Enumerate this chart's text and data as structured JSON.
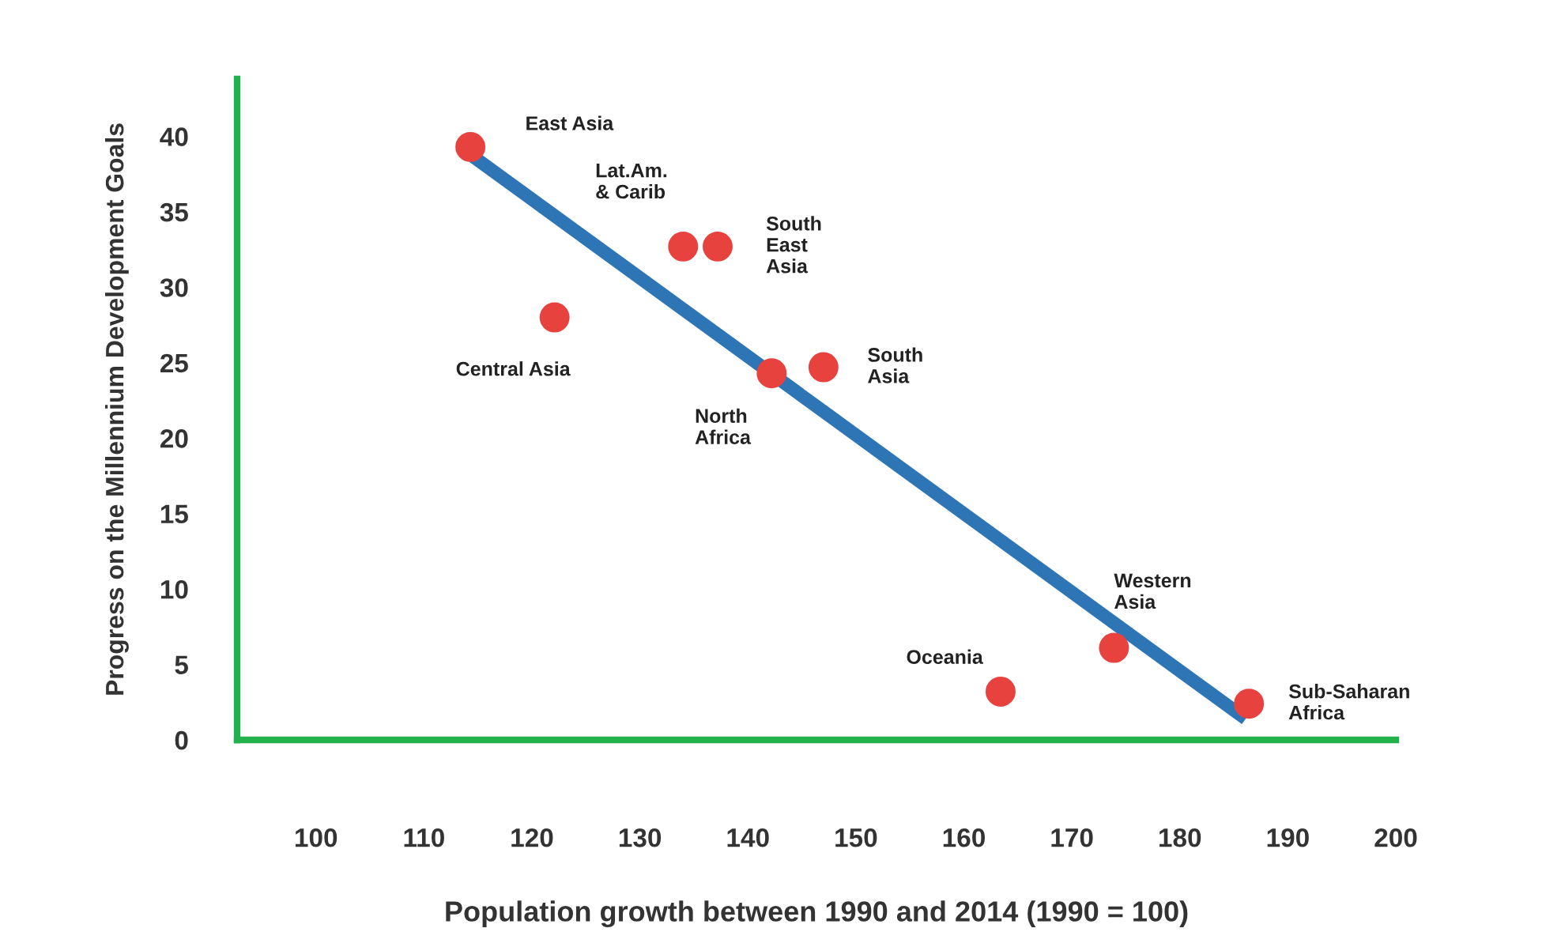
{
  "chart_data": {
    "type": "scatter",
    "xlabel": "Population growth between 1990 and 2014 (1990 = 100)",
    "ylabel": "Progress on the Millennium Development Goals",
    "series": [
      {
        "marker": "circle",
        "color": "#e8423f",
        "x": [
          114.3,
          134.0,
          137.2,
          122.1,
          142.2,
          147.0,
          163.4,
          173.9,
          186.4
        ],
        "values": [
          39.3,
          32.7,
          32.7,
          28.0,
          24.3,
          24.7,
          3.2,
          6.1,
          2.4
        ]
      },
      {
        "type": "line",
        "marker": "none",
        "color": "#2e75b6",
        "x": [
          114.3,
          186.1
        ],
        "values": [
          38.8,
          1.4
        ]
      }
    ],
    "annotations": [
      {
        "text": "East Asia",
        "x": 114.3,
        "y": 39.3
      },
      {
        "text": "Lat.Am.\n& Carib",
        "x": 134.0,
        "y": 32.7
      },
      {
        "text": "South\nEast\nAsia",
        "x": 137.2,
        "y": 32.7
      },
      {
        "text": "Central Asia",
        "x": 122.1,
        "y": 28.0
      },
      {
        "text": "North\nAfrica",
        "x": 142.2,
        "y": 24.3
      },
      {
        "text": "South\nAsia",
        "x": 147.0,
        "y": 24.7
      },
      {
        "text": "Oceania",
        "x": 163.4,
        "y": 3.2
      },
      {
        "text": "Western\nAsia",
        "x": 173.9,
        "y": 6.1
      },
      {
        "text": "Sub-Saharan\nAfrica",
        "x": 186.4,
        "y": 2.4
      }
    ],
    "xlim": [
      92.7,
      200
    ],
    "ylim": [
      0,
      43.8
    ],
    "xticks": [
      100,
      110,
      120,
      130,
      140,
      150,
      160,
      170,
      180,
      190,
      200
    ],
    "yticks": [
      0,
      5,
      10,
      15,
      20,
      25,
      30,
      35,
      40
    ],
    "grid": false,
    "legend": false,
    "line_style": "solid"
  }
}
